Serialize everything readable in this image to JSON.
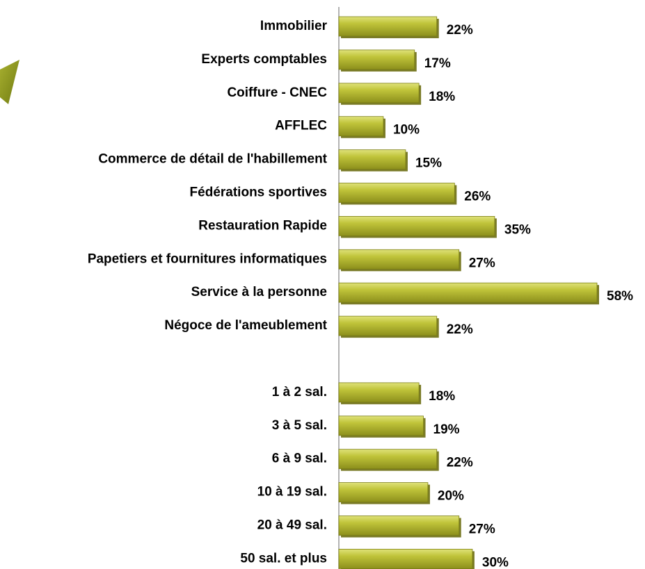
{
  "chart_data": {
    "type": "bar",
    "orientation": "horizontal",
    "categories": [
      "Immobilier",
      "Experts comptables",
      "Coiffure - CNEC",
      "AFFLEC",
      "Commerce de détail de l'habillement",
      "Fédérations sportives",
      "Restauration Rapide",
      "Papetiers et fournitures informatiques",
      "Service à la personne",
      "Négoce de l'ameublement",
      null,
      "1 à 2 sal.",
      "3 à 5 sal.",
      "6 à 9 sal.",
      "10 à 19 sal.",
      "20 à 49 sal.",
      "50 sal. et plus"
    ],
    "values": [
      22,
      17,
      18,
      10,
      15,
      26,
      35,
      27,
      58,
      22,
      null,
      18,
      19,
      22,
      20,
      27,
      30
    ],
    "value_labels": [
      "22%",
      "17%",
      "18%",
      "10%",
      "15%",
      "26%",
      "35%",
      "27%",
      "58%",
      "22%",
      null,
      "18%",
      "19%",
      "22%",
      "20%",
      "27%",
      "30%"
    ],
    "color": "#b4b830"
  }
}
